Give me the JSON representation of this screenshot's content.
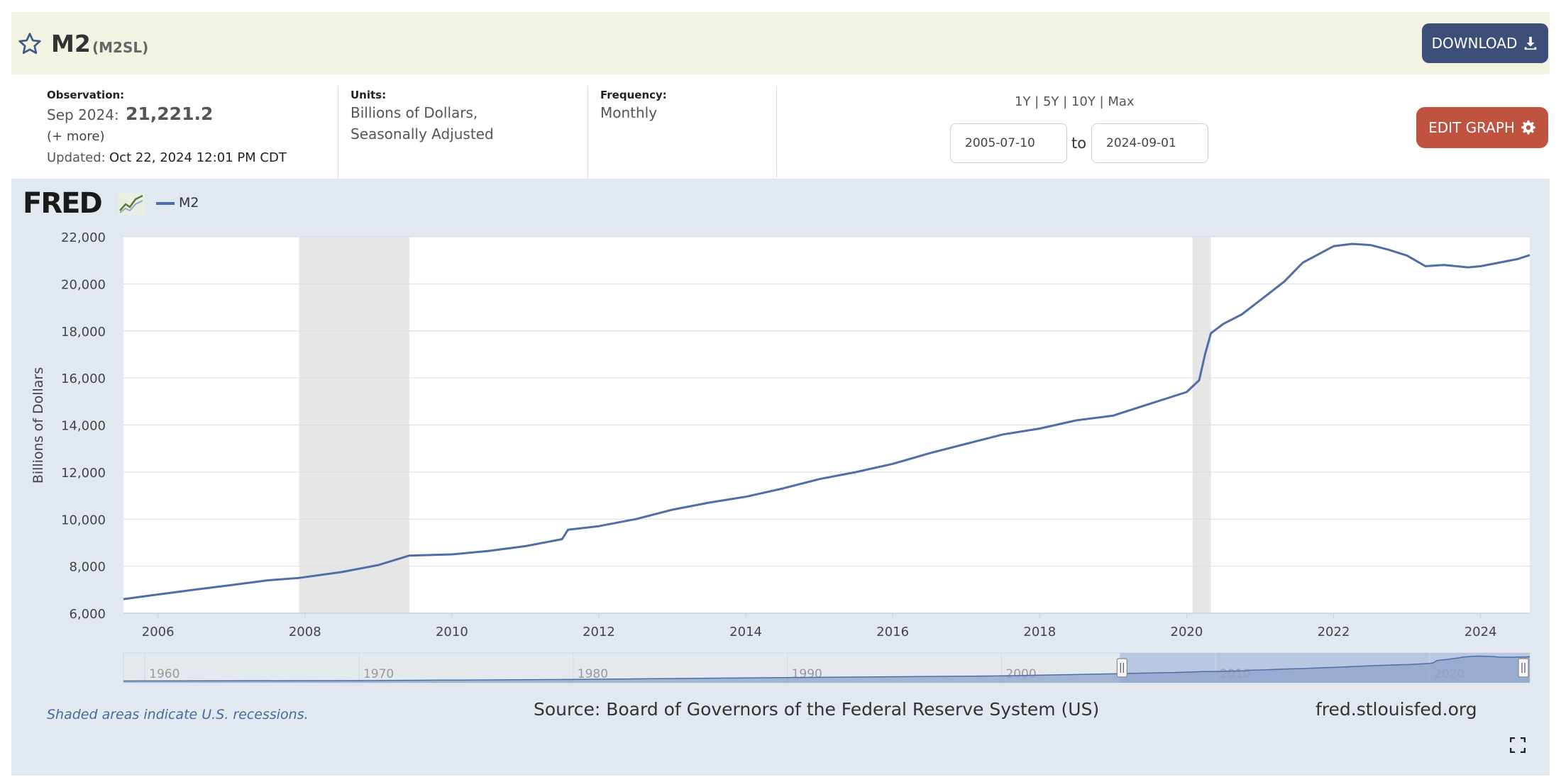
{
  "header": {
    "series_name": "M2",
    "series_id": "(M2SL)",
    "download_label": "DOWNLOAD"
  },
  "observation": {
    "label": "Observation:",
    "date": "Sep 2024:",
    "value": "21,221.2",
    "more": "(+ more)",
    "updated_label": "Updated:",
    "updated_value": "Oct 22, 2024 12:01 PM CDT"
  },
  "units": {
    "label": "Units:",
    "line1": "Billions of Dollars,",
    "line2": "Seasonally Adjusted"
  },
  "frequency": {
    "label": "Frequency:",
    "value": "Monthly"
  },
  "range": {
    "links": "1Y | 5Y | 10Y | Max",
    "from": "2005-07-10",
    "to_label": "to",
    "to": "2024-09-01"
  },
  "edit_label": "EDIT GRAPH",
  "logo": "FRED",
  "legend_label": "M2",
  "footnote": "Shaded areas indicate U.S. recessions.",
  "source": "Source: Board of Governors of the Federal Reserve System (US)",
  "site": "fred.stlouisfed.org",
  "colors": {
    "series": "#4f6ea6",
    "recession": "#e6e6e6",
    "panel": "#e1e8ef",
    "download": "#3d4f78",
    "edit": "#c0533f"
  },
  "chart_data": {
    "type": "line",
    "ylabel": "Billions of Dollars",
    "xlim": [
      2005.53,
      2024.67
    ],
    "ylim": [
      6000,
      22000
    ],
    "y_ticks": [
      "6,000",
      "8,000",
      "10,000",
      "12,000",
      "14,000",
      "16,000",
      "18,000",
      "20,000",
      "22,000"
    ],
    "y_tick_values": [
      6000,
      8000,
      10000,
      12000,
      14000,
      16000,
      18000,
      20000,
      22000
    ],
    "x_ticks": [
      "2006",
      "2008",
      "2010",
      "2012",
      "2014",
      "2016",
      "2018",
      "2020",
      "2022",
      "2024"
    ],
    "x_tick_values": [
      2006,
      2008,
      2010,
      2012,
      2014,
      2016,
      2018,
      2020,
      2022,
      2024
    ],
    "recessions": [
      [
        2007.92,
        2009.42
      ],
      [
        2020.08,
        2020.33
      ]
    ],
    "series": [
      {
        "name": "M2",
        "x": [
          2005.53,
          2006.0,
          2006.5,
          2007.0,
          2007.5,
          2007.92,
          2008.5,
          2009.0,
          2009.42,
          2010.0,
          2010.5,
          2011.0,
          2011.5,
          2011.58,
          2012.0,
          2012.5,
          2013.0,
          2013.5,
          2014.0,
          2014.5,
          2015.0,
          2015.5,
          2016.0,
          2016.5,
          2017.0,
          2017.5,
          2018.0,
          2018.5,
          2019.0,
          2019.5,
          2020.0,
          2020.17,
          2020.25,
          2020.33,
          2020.5,
          2020.75,
          2021.0,
          2021.33,
          2021.58,
          2022.0,
          2022.25,
          2022.5,
          2022.75,
          2023.0,
          2023.25,
          2023.5,
          2023.83,
          2024.0,
          2024.25,
          2024.5,
          2024.67
        ],
        "values": [
          6600,
          6800,
          7000,
          7200,
          7400,
          7500,
          7750,
          8050,
          8450,
          8500,
          8650,
          8850,
          9150,
          9550,
          9700,
          10000,
          10400,
          10700,
          10950,
          11300,
          11700,
          12000,
          12350,
          12800,
          13200,
          13600,
          13850,
          14200,
          14400,
          14900,
          15400,
          15900,
          17000,
          17900,
          18300,
          18700,
          19300,
          20100,
          20900,
          21600,
          21700,
          21650,
          21450,
          21200,
          20750,
          20800,
          20700,
          20750,
          20900,
          21050,
          21221.2
        ]
      }
    ],
    "navigator": {
      "x_ticks": [
        "1960",
        "1970",
        "1980",
        "1990",
        "2000",
        "2010",
        "2020"
      ],
      "x_tick_values": [
        1960,
        1970,
        1980,
        1990,
        2000,
        2010,
        2020
      ],
      "xlim": [
        1959,
        2024.67
      ]
    }
  }
}
